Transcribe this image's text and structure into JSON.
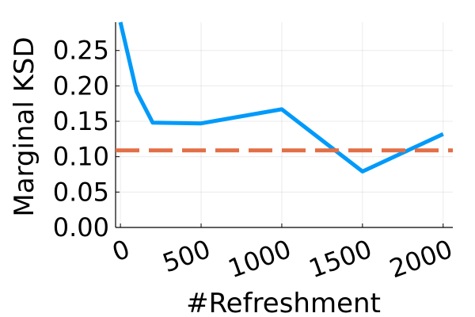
{
  "chart_data": {
    "type": "line",
    "xlabel": "#Refreshment",
    "ylabel": "Marginal KSD",
    "xlim": [
      -30,
      2060
    ],
    "ylim": [
      0.0,
      0.29
    ],
    "x_ticks": [
      0,
      500,
      1000,
      1500,
      2000
    ],
    "x_tick_labels": [
      "0",
      "500",
      "1000",
      "1500",
      "2000"
    ],
    "y_ticks": [
      0.0,
      0.05,
      0.1,
      0.15,
      0.2,
      0.25
    ],
    "y_tick_labels": [
      "0.00",
      "0.05",
      "0.10",
      "0.15",
      "0.20",
      "0.25"
    ],
    "grid": true,
    "series": [
      {
        "style": "solid",
        "color": "#009AFA",
        "x": [
          0,
          100,
          200,
          500,
          1000,
          1500,
          2000
        ],
        "y": [
          0.29,
          0.192,
          0.148,
          0.147,
          0.167,
          0.079,
          0.132
        ]
      },
      {
        "style": "dashed",
        "color": "#E26F46",
        "x": [
          -30,
          2060
        ],
        "y": [
          0.109,
          0.109
        ]
      }
    ]
  }
}
